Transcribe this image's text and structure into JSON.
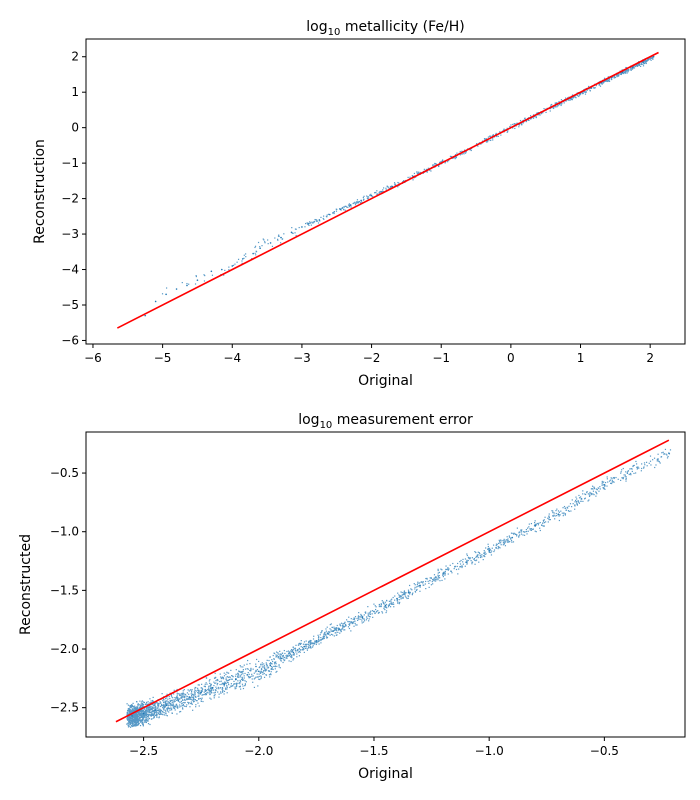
{
  "chart_data": [
    {
      "type": "scatter",
      "title_prefix": "log",
      "title_sub": "10",
      "title_suffix": " metallicity (Fe/H)",
      "xlabel": "Original",
      "ylabel": "Reconstruction",
      "xlim": [
        -6.1,
        2.5
      ],
      "ylim": [
        -6.1,
        2.5
      ],
      "xticks": [
        -6,
        -5,
        -4,
        -3,
        -2,
        -1,
        0,
        1,
        2
      ],
      "yticks": [
        -6,
        -5,
        -4,
        -3,
        -2,
        -1,
        0,
        1,
        2
      ],
      "xtick_labels": [
        "−6",
        "−5",
        "−4",
        "−3",
        "−2",
        "−1",
        "0",
        "1",
        "2"
      ],
      "ytick_labels": [
        "−6",
        "−5",
        "−4",
        "−3",
        "−2",
        "−1",
        "0",
        "1",
        "2"
      ],
      "grid": false,
      "series": [
        {
          "kind": "points",
          "color": "#1f77b4",
          "x": [
            -5.25,
            -5.1,
            -4.95,
            -4.8,
            -4.65,
            -4.5,
            -4.3,
            -4.15,
            -4.0,
            -3.85,
            -3.7,
            -3.6,
            -3.45,
            -3.3,
            -3.15,
            -3.0,
            -2.9,
            -2.75,
            -2.6,
            -2.45,
            -2.3,
            -2.15,
            -2.0,
            -1.85,
            -1.7,
            -1.55,
            -1.4,
            -1.25,
            -1.1,
            -0.95,
            -0.8,
            -0.65,
            -0.5,
            -0.35,
            -0.2,
            -0.05,
            0.1,
            0.25,
            0.4,
            0.55,
            0.7,
            0.85,
            1.0,
            1.15,
            1.3,
            1.45,
            1.6,
            1.75,
            1.9,
            2.05
          ],
          "y": [
            -5.3,
            -4.9,
            -4.7,
            -4.55,
            -4.45,
            -4.3,
            -4.05,
            -4.0,
            -3.9,
            -3.7,
            -3.55,
            -3.4,
            -3.25,
            -3.1,
            -2.95,
            -2.8,
            -2.7,
            -2.6,
            -2.45,
            -2.3,
            -2.18,
            -2.05,
            -1.92,
            -1.8,
            -1.66,
            -1.53,
            -1.38,
            -1.24,
            -1.1,
            -0.95,
            -0.8,
            -0.65,
            -0.5,
            -0.35,
            -0.2,
            -0.05,
            0.1,
            0.25,
            0.4,
            0.55,
            0.68,
            0.83,
            0.98,
            1.12,
            1.27,
            1.42,
            1.56,
            1.7,
            1.85,
            2.0
          ]
        },
        {
          "kind": "identity-line",
          "color": "#ff0000",
          "x": [
            -5.65,
            2.12
          ],
          "y": [
            -5.65,
            2.12
          ]
        }
      ]
    },
    {
      "type": "scatter",
      "title_prefix": "log",
      "title_sub": "10",
      "title_suffix": " measurement error",
      "xlabel": "Original",
      "ylabel": "Reconstructed",
      "xlim": [
        -2.75,
        -0.15
      ],
      "ylim": [
        -2.75,
        -0.15
      ],
      "xticks": [
        -2.5,
        -2.0,
        -1.5,
        -1.0,
        -0.5
      ],
      "yticks": [
        -2.5,
        -2.0,
        -1.5,
        -1.0,
        -0.5
      ],
      "xtick_labels": [
        "−2.5",
        "−2.0",
        "−1.5",
        "−1.0",
        "−0.5"
      ],
      "ytick_labels": [
        "−2.5",
        "−2.0",
        "−1.5",
        "−1.0",
        "−0.5"
      ],
      "grid": false,
      "series": [
        {
          "kind": "points",
          "color": "#1f77b4",
          "x": [
            -2.55,
            -2.5,
            -2.45,
            -2.4,
            -2.35,
            -2.3,
            -2.25,
            -2.2,
            -2.15,
            -2.1,
            -2.05,
            -2.0,
            -1.95,
            -1.9,
            -1.85,
            -1.8,
            -1.75,
            -1.7,
            -1.65,
            -1.6,
            -1.55,
            -1.5,
            -1.45,
            -1.4,
            -1.35,
            -1.3,
            -1.2,
            -1.1,
            -1.0,
            -0.9,
            -0.8,
            -0.7,
            -0.6,
            -0.5,
            -0.4,
            -0.22
          ],
          "y": [
            -2.57,
            -2.55,
            -2.52,
            -2.48,
            -2.44,
            -2.41,
            -2.37,
            -2.33,
            -2.3,
            -2.26,
            -2.22,
            -2.19,
            -2.14,
            -2.08,
            -2.03,
            -1.98,
            -1.93,
            -1.87,
            -1.83,
            -1.77,
            -1.73,
            -1.68,
            -1.63,
            -1.57,
            -1.52,
            -1.46,
            -1.36,
            -1.26,
            -1.16,
            -1.05,
            -0.95,
            -0.85,
            -0.72,
            -0.6,
            -0.5,
            -0.33
          ]
        },
        {
          "kind": "identity-line",
          "color": "#ff0000",
          "x": [
            -2.62,
            -0.22
          ],
          "y": [
            -2.62,
            -0.22
          ]
        }
      ]
    }
  ]
}
